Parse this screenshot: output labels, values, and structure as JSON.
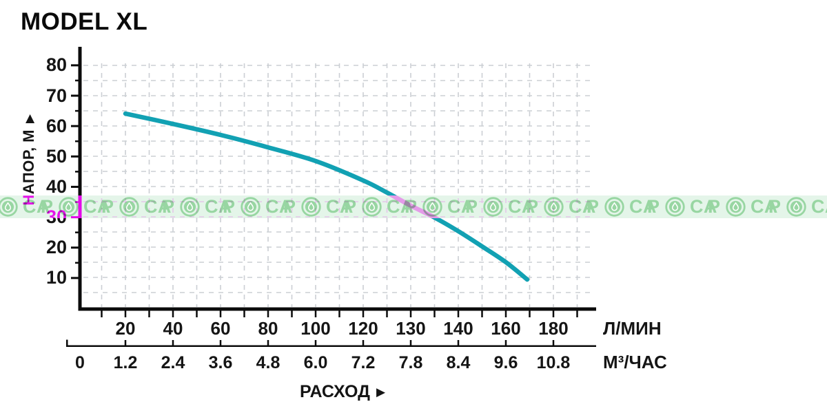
{
  "title": "MODEL XL",
  "colors": {
    "curve": "#12A1B3",
    "axis": "#0b0b0b",
    "grid": "#cbcfd4",
    "text": "#151515",
    "watermark_magenta": "#ff00ff",
    "watermark_bg_green": "#e4f5e9",
    "watermark_green": "#98d6a2"
  },
  "y_axis": {
    "label": "НАПОР, М",
    "arrow": "▶",
    "tick_labels": [
      "80",
      "70",
      "60",
      "50",
      "40",
      "30",
      "20",
      "10"
    ],
    "tick_values": [
      80,
      70,
      60,
      50,
      40,
      30,
      20,
      10
    ]
  },
  "x_axis_lmin": {
    "unit": "Л/МИН",
    "tick_labels": [
      "20",
      "40",
      "60",
      "80",
      "100",
      "120",
      "130",
      "140",
      "160",
      "180"
    ],
    "tick_values": [
      20,
      40,
      60,
      80,
      100,
      120,
      130,
      140,
      160,
      180
    ]
  },
  "x_axis_m3h": {
    "unit": "М³/ЧАС",
    "tick_labels": [
      "0",
      "1.2",
      "2.4",
      "3.6",
      "4.8",
      "6.0",
      "7.2",
      "7.8",
      "8.4",
      "9.6",
      "10.8"
    ],
    "tick_values": [
      0,
      1.2,
      2.4,
      3.6,
      4.8,
      6.0,
      7.2,
      7.8,
      8.4,
      9.6,
      10.8
    ]
  },
  "flow_label": {
    "text": "РАСХОД",
    "arrow": "▶"
  },
  "watermark": {
    "prefix": "Р",
    "suffix": "СА",
    "count": 14
  },
  "chart_data": {
    "type": "line",
    "title": "MODEL XL",
    "xlabel": "РАСХОД (Л/МИН / М³/ЧАС)",
    "ylabel": "НАПОР, М",
    "ylim": [
      0,
      85
    ],
    "grid": true,
    "x_scale_note": "labeled x ticks are equally spaced even though values are non-uniform (…,120,130,140,160,180)",
    "x_tick_values_lmin": [
      0,
      20,
      40,
      60,
      80,
      100,
      120,
      130,
      140,
      160,
      180
    ],
    "x_tick_values_m3h": [
      0,
      1.2,
      2.4,
      3.6,
      4.8,
      6.0,
      7.2,
      7.8,
      8.4,
      9.6,
      10.8
    ],
    "series": [
      {
        "name": "MODEL XL pump curve",
        "x_lmin": [
          20,
          40,
          60,
          80,
          100,
          120,
          125,
          130,
          135,
          140,
          150,
          160,
          169
        ],
        "head_m": [
          64.1,
          60.7,
          57.1,
          53.0,
          48.5,
          42.1,
          38.1,
          33.8,
          29.9,
          25.4,
          20.4,
          15.2,
          9.5
        ]
      }
    ]
  }
}
